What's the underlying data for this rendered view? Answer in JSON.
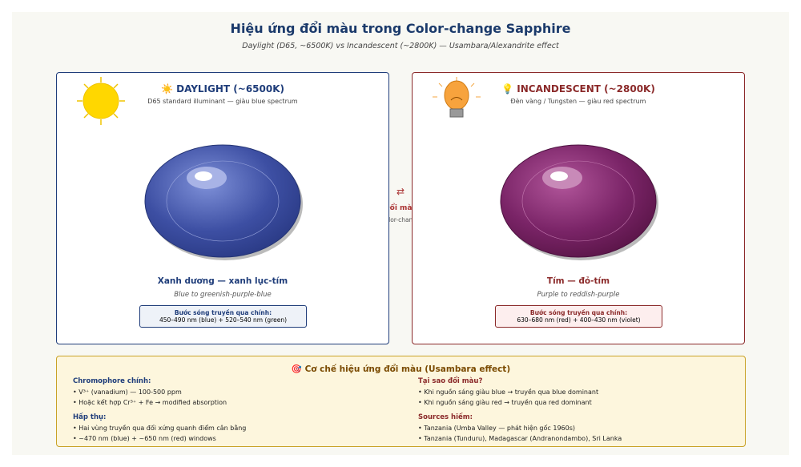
{
  "title": "Hiệu ứng đổi màu trong Color-change Sapphire",
  "subtitle": "Daylight (D65, ~6500K) vs Incandescent (~2800K) — Usambara/Alexandrite effect",
  "daylight": {
    "heading": "☀️ DAYLIGHT (~6500K)",
    "subheading": "D65 standard illuminant — giàu blue spectrum",
    "color_name": "Xanh dương — xanh lục-tím",
    "color_english": "Blue to greenish-purple-blue",
    "box_title": "Bước sóng truyền qua chính:",
    "box_text": "450–490 nm (blue) + 520–540 nm (green)"
  },
  "incandescent": {
    "heading": "💡 INCANDESCENT (~2800K)",
    "subheading": "Đèn vàng / Tungsten — giàu red spectrum",
    "color_name": "Tím — đỏ-tím",
    "color_english": "Purple to reddish-purple",
    "box_title": "Bước sóng truyền qua chính:",
    "box_text": "630–680 nm (red) + 400–430 nm (violet)"
  },
  "middle": {
    "icon": "⇄",
    "label": "Đổi màu",
    "sublabel": "Color-change"
  },
  "mechanism": {
    "title": "🎯 Cơ chế hiệu ứng đổi màu (Usambara effect)",
    "left": [
      {
        "heading": "Chromophore chính:",
        "items": [
          "V³⁺ (vanadium) — 100-500 ppm",
          "Hoặc kết hợp Cr³⁺ + Fe → modified absorption"
        ]
      },
      {
        "heading": "Hấp thụ:",
        "items": [
          "Hai vùng truyền qua đối xứng quanh điểm cân bằng",
          "~470 nm (blue) + ~650 nm (red) windows"
        ]
      }
    ],
    "right": [
      {
        "heading": "Tại sao đổi màu?",
        "items": [
          "Khi nguồn sáng giàu blue → truyền qua blue dominant",
          "Khi nguồn sáng giàu red → truyền qua red dominant"
        ]
      },
      {
        "heading": "Sources hiếm:",
        "items": [
          "Tanzania (Umba Valley — phát hiện gốc 1960s)",
          "Tanzania (Tunduru), Madagascar (Andranondambo), Sri Lanka"
        ]
      }
    ]
  }
}
